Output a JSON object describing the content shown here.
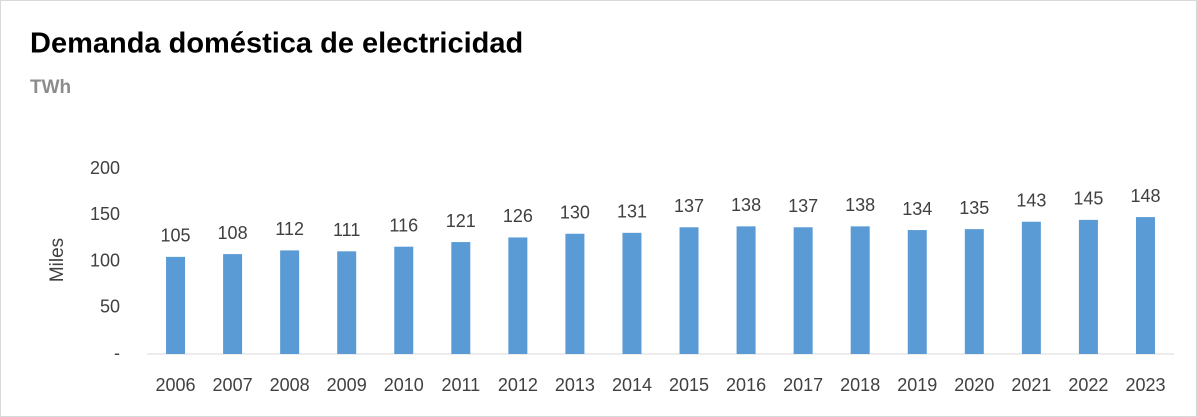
{
  "chart_data": {
    "type": "bar",
    "title": "Demanda doméstica de electricidad",
    "subtitle": "TWh",
    "y_label": "Miles",
    "categories": [
      "2006",
      "2007",
      "2008",
      "2009",
      "2010",
      "2011",
      "2012",
      "2013",
      "2014",
      "2015",
      "2016",
      "2017",
      "2018",
      "2019",
      "2020",
      "2021",
      "2022",
      "2023"
    ],
    "values": [
      105,
      108,
      112,
      111,
      116,
      121,
      126,
      130,
      131,
      137,
      138,
      137,
      138,
      134,
      135,
      143,
      145,
      148
    ],
    "color": "#5b9bd5",
    "ylim": [
      0,
      200
    ],
    "yticks": [
      {
        "value": 0,
        "label": "-"
      },
      50,
      100,
      150,
      200
    ],
    "grid": false
  }
}
